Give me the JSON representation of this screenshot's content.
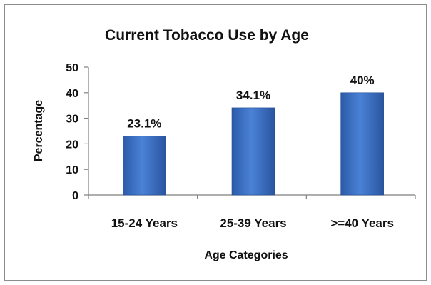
{
  "chart_data": {
    "type": "bar",
    "title": "Current Tobacco Use by Age",
    "xlabel": "Age Categories",
    "ylabel": "Percentage",
    "categories": [
      "15-24 Years",
      "25-39 Years",
      ">=40 Years"
    ],
    "values": [
      23.1,
      34.1,
      40
    ],
    "data_labels": [
      "23.1%",
      "34.1%",
      "40%"
    ],
    "ylim": [
      0,
      50
    ],
    "yticks": [
      0,
      10,
      20,
      30,
      40,
      50
    ],
    "ytick_labels": [
      "0",
      "10",
      "20",
      "30",
      "40",
      "50"
    ],
    "grid": false,
    "legend": "none",
    "bar_color": "#3a6fc4",
    "bar_color_dark": "#1f4d96"
  }
}
